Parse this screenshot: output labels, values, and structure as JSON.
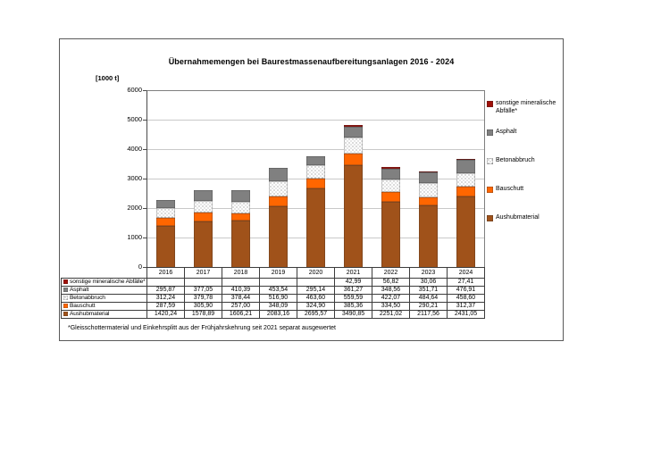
{
  "page": {
    "title": "Übernahmemengen bei Baurestmassenaufbereitungsanlagen 2016 - 2024",
    "unit_label": "[1000 t]",
    "footnote": "*Gleisschottermaterial und Einkehrsplitt aus der Frühjahrskehrung seit 2021 separat ausgewertet"
  },
  "colors": {
    "aushubmaterial": "#A0521A",
    "bauschutt": "#FF6600",
    "betonabbruch_base": "#FFFFFF",
    "asphalt": "#808080",
    "sonstige_mineralische_abfaelle": "#A01009",
    "gridline": "#C9C9C9",
    "axis": "#4A4A4A"
  },
  "chart_data": {
    "type": "bar",
    "stacked": true,
    "title": "Übernahmemengen bei Baurestmassenaufbereitungsanlagen 2016 - 2024",
    "ylabel": "[1000 t]",
    "xlabel": "",
    "ylim": [
      0,
      6000
    ],
    "ytick_step": 1000,
    "grid": true,
    "legend_position": "right",
    "categories": [
      "2016",
      "2017",
      "2018",
      "2019",
      "2020",
      "2021",
      "2022",
      "2023",
      "2024"
    ],
    "series": [
      {
        "name": "Aushubmaterial",
        "color": "#A0521A",
        "pattern": "solid",
        "values": [
          1420.24,
          1578.89,
          1606.21,
          2083.16,
          2695.57,
          3490.85,
          2251.02,
          2117.56,
          2431.05
        ]
      },
      {
        "name": "Bauschutt",
        "color": "#FF6600",
        "pattern": "solid",
        "values": [
          287.59,
          305.9,
          257.0,
          348.09,
          324.9,
          385.36,
          334.5,
          290.21,
          312.37
        ]
      },
      {
        "name": "Betonabbruch",
        "color": "#FFFFFF",
        "pattern": "speckle",
        "values": [
          312.24,
          379.78,
          378.44,
          516.9,
          463.6,
          559.59,
          422.07,
          484.64,
          458.6
        ]
      },
      {
        "name": "Asphalt",
        "color": "#808080",
        "pattern": "solid",
        "values": [
          295.87,
          377.05,
          410.39,
          453.54,
          295.14,
          361.27,
          348.56,
          351.71,
          476.91
        ]
      },
      {
        "name": "sonstige mineralische Abfälle*",
        "color": "#A01009",
        "pattern": "solid",
        "values": [
          0,
          0,
          0,
          0,
          0,
          42.99,
          56.82,
          30.06,
          27.41
        ]
      }
    ]
  },
  "table": {
    "rows": [
      {
        "series": 4,
        "label": "sonstige mineralische Abfälle*",
        "values": [
          "",
          "",
          "",
          "",
          "",
          "42,99",
          "56,82",
          "30,06",
          "27,41"
        ]
      },
      {
        "series": 3,
        "label": "Asphalt",
        "values": [
          "295,87",
          "377,05",
          "410,39",
          "453,54",
          "295,14",
          "361,27",
          "348,56",
          "351,71",
          "476,91"
        ]
      },
      {
        "series": 2,
        "label": "Betonabbruch",
        "values": [
          "312,24",
          "379,78",
          "378,44",
          "516,90",
          "463,60",
          "559,59",
          "422,07",
          "484,64",
          "458,60"
        ]
      },
      {
        "series": 1,
        "label": "Bauschutt",
        "values": [
          "287,59",
          "305,90",
          "257,00",
          "348,09",
          "324,90",
          "385,36",
          "334,50",
          "290,21",
          "312,37"
        ]
      },
      {
        "series": 0,
        "label": "Aushubmaterial",
        "values": [
          "1420,24",
          "1578,89",
          "1606,21",
          "2083,16",
          "2695,57",
          "3490,85",
          "2251,02",
          "2117,56",
          "2431,05"
        ]
      }
    ]
  },
  "legend": {
    "items": [
      "sonstige mineralische Abfälle*",
      "Asphalt",
      "Betonabbruch",
      "Bauschutt",
      "Aushubmaterial"
    ]
  }
}
